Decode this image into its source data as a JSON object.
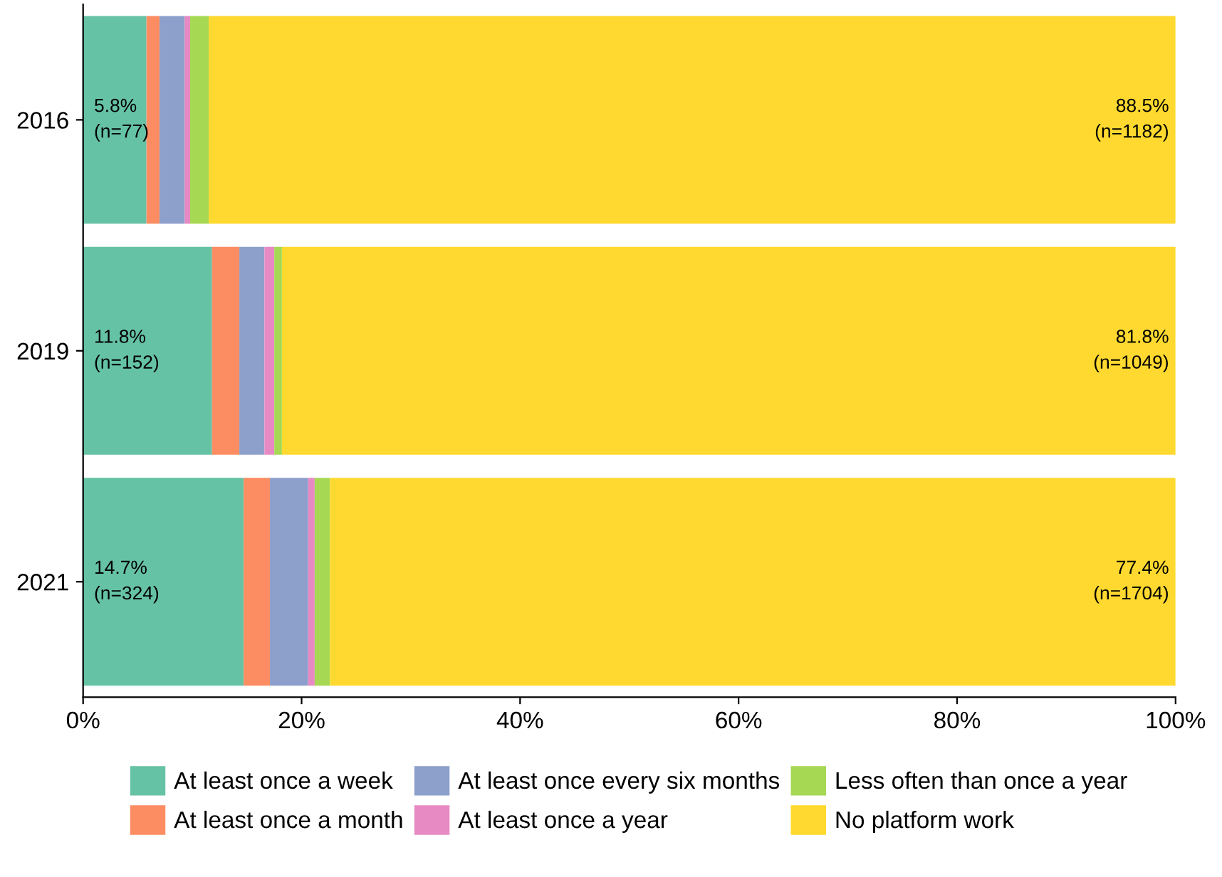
{
  "chart_data": {
    "type": "bar",
    "orientation": "horizontal",
    "stacked": true,
    "categories": [
      "2016",
      "2019",
      "2021"
    ],
    "series": [
      {
        "name": "At least once a week",
        "color": "#66c2a5",
        "values": [
          5.8,
          11.8,
          14.7
        ],
        "value_labels": [
          "5.8%\n(n=77)",
          "11.8%\n(n=152)",
          "14.7%\n(n=324)"
        ]
      },
      {
        "name": "At least once a month",
        "color": "#fc8d62",
        "values": [
          1.2,
          2.5,
          2.4
        ]
      },
      {
        "name": "At least once every six months",
        "color": "#8da0cb",
        "values": [
          2.3,
          2.3,
          3.5
        ]
      },
      {
        "name": "At least once a year",
        "color": "#e78ac3",
        "values": [
          0.5,
          0.9,
          0.6
        ]
      },
      {
        "name": "Less often than once a year",
        "color": "#a6d854",
        "values": [
          1.7,
          0.7,
          1.4
        ]
      },
      {
        "name": "No platform work",
        "color": "#ffd92f",
        "values": [
          88.5,
          81.8,
          77.4
        ],
        "value_labels": [
          "88.5%\n(n=1182)",
          "81.8%\n(n=1049)",
          "77.4%\n(n=1704)"
        ]
      }
    ],
    "xlim": [
      0,
      100
    ],
    "xticks": [
      {
        "value": 0,
        "label": "0%"
      },
      {
        "value": 20,
        "label": "20%"
      },
      {
        "value": 40,
        "label": "40%"
      },
      {
        "value": 60,
        "label": "60%"
      },
      {
        "value": 80,
        "label": "80%"
      },
      {
        "value": 100,
        "label": "100%"
      }
    ],
    "grid": false,
    "legend": "bottom"
  }
}
